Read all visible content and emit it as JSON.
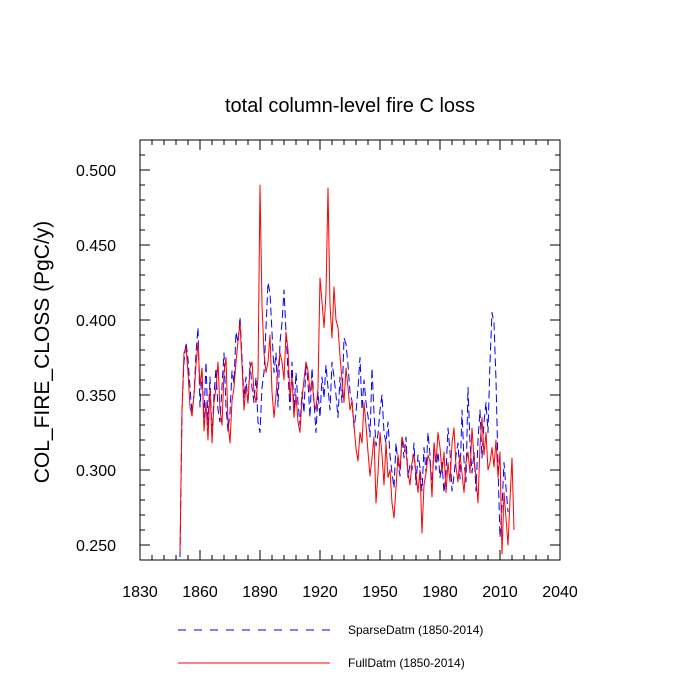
{
  "chart_data": {
    "type": "line",
    "title": "total column-level fire C loss",
    "xlabel": "",
    "ylabel": "COL_FIRE_CLOSS  (PgC/y)",
    "xlim": [
      1830,
      2040
    ],
    "ylim": [
      0.24,
      0.52
    ],
    "xticks": [
      1830,
      1860,
      1890,
      1920,
      1950,
      1980,
      2010,
      2040
    ],
    "xtick_labels": [
      "1830",
      "1860",
      "1890",
      "1920",
      "1950",
      "1980",
      "2010",
      "2040"
    ],
    "yticks": [
      0.25,
      0.3,
      0.35,
      0.4,
      0.45,
      0.5
    ],
    "ytick_labels": [
      "0.250",
      "0.300",
      "0.350",
      "0.400",
      "0.450",
      "0.500"
    ],
    "x_start": 1850,
    "series": [
      {
        "name": "SparseDatm (1850-2014)",
        "color": "#0000ff",
        "style": "dashed",
        "values": [
          0.242,
          0.34,
          0.372,
          0.385,
          0.374,
          0.355,
          0.338,
          0.35,
          0.378,
          0.395,
          0.342,
          0.365,
          0.335,
          0.372,
          0.33,
          0.362,
          0.322,
          0.35,
          0.368,
          0.34,
          0.332,
          0.356,
          0.378,
          0.342,
          0.326,
          0.338,
          0.366,
          0.358,
          0.392,
          0.385,
          0.402,
          0.375,
          0.348,
          0.362,
          0.344,
          0.372,
          0.355,
          0.345,
          0.362,
          0.332,
          0.325,
          0.355,
          0.365,
          0.395,
          0.425,
          0.418,
          0.392,
          0.365,
          0.378,
          0.342,
          0.385,
          0.398,
          0.42,
          0.392,
          0.365,
          0.34,
          0.372,
          0.338,
          0.365,
          0.345,
          0.33,
          0.352,
          0.338,
          0.372,
          0.358,
          0.335,
          0.368,
          0.345,
          0.325,
          0.352,
          0.335,
          0.362,
          0.348,
          0.37,
          0.355,
          0.34,
          0.372,
          0.362,
          0.35,
          0.335,
          0.362,
          0.345,
          0.388,
          0.384,
          0.37,
          0.352,
          0.346,
          0.328,
          0.338,
          0.355,
          0.375,
          0.34,
          0.36,
          0.345,
          0.336,
          0.322,
          0.368,
          0.338,
          0.316,
          0.324,
          0.34,
          0.35,
          0.325,
          0.318,
          0.332,
          0.31,
          0.298,
          0.288,
          0.318,
          0.304,
          0.296,
          0.322,
          0.308,
          0.322,
          0.295,
          0.304,
          0.3,
          0.318,
          0.29,
          0.31,
          0.302,
          0.286,
          0.315,
          0.298,
          0.325,
          0.31,
          0.288,
          0.318,
          0.3,
          0.312,
          0.295,
          0.305,
          0.285,
          0.298,
          0.328,
          0.312,
          0.286,
          0.296,
          0.31,
          0.318,
          0.294,
          0.34,
          0.306,
          0.292,
          0.355,
          0.318,
          0.298,
          0.312,
          0.286,
          0.32,
          0.34,
          0.308,
          0.332,
          0.345,
          0.325,
          0.372,
          0.405,
          0.398,
          0.36,
          0.302,
          0.255,
          0.276,
          0.305,
          0.288,
          0.272
        ]
      },
      {
        "name": "FullDatm (1850-2014)",
        "color": "#ff0000",
        "style": "solid",
        "values": [
          0.245,
          0.34,
          0.378,
          0.382,
          0.365,
          0.342,
          0.336,
          0.35,
          0.37,
          0.385,
          0.356,
          0.368,
          0.326,
          0.345,
          0.32,
          0.355,
          0.318,
          0.345,
          0.355,
          0.372,
          0.34,
          0.33,
          0.365,
          0.375,
          0.332,
          0.318,
          0.346,
          0.355,
          0.372,
          0.386,
          0.398,
          0.37,
          0.34,
          0.356,
          0.345,
          0.368,
          0.372,
          0.352,
          0.345,
          0.362,
          0.49,
          0.41,
          0.378,
          0.365,
          0.372,
          0.39,
          0.352,
          0.335,
          0.35,
          0.368,
          0.378,
          0.372,
          0.36,
          0.392,
          0.38,
          0.348,
          0.362,
          0.335,
          0.35,
          0.332,
          0.325,
          0.348,
          0.36,
          0.372,
          0.366,
          0.352,
          0.36,
          0.345,
          0.34,
          0.355,
          0.428,
          0.412,
          0.395,
          0.418,
          0.488,
          0.41,
          0.388,
          0.422,
          0.4,
          0.395,
          0.376,
          0.36,
          0.345,
          0.368,
          0.355,
          0.34,
          0.346,
          0.33,
          0.314,
          0.306,
          0.325,
          0.318,
          0.345,
          0.33,
          0.312,
          0.296,
          0.308,
          0.322,
          0.278,
          0.298,
          0.325,
          0.31,
          0.29,
          0.318,
          0.295,
          0.3,
          0.278,
          0.268,
          0.288,
          0.31,
          0.3,
          0.322,
          0.316,
          0.312,
          0.298,
          0.29,
          0.305,
          0.31,
          0.298,
          0.285,
          0.3,
          0.258,
          0.29,
          0.298,
          0.31,
          0.306,
          0.282,
          0.318,
          0.305,
          0.325,
          0.315,
          0.298,
          0.312,
          0.285,
          0.305,
          0.292,
          0.318,
          0.328,
          0.302,
          0.292,
          0.31,
          0.298,
          0.285,
          0.305,
          0.312,
          0.298,
          0.328,
          0.308,
          0.295,
          0.278,
          0.316,
          0.335,
          0.31,
          0.325,
          0.3,
          0.305,
          0.315,
          0.302,
          0.32,
          0.295,
          0.312,
          0.244,
          0.285,
          0.268,
          0.25,
          0.28,
          0.308,
          0.26
        ]
      }
    ],
    "legend_position": "bottom"
  }
}
